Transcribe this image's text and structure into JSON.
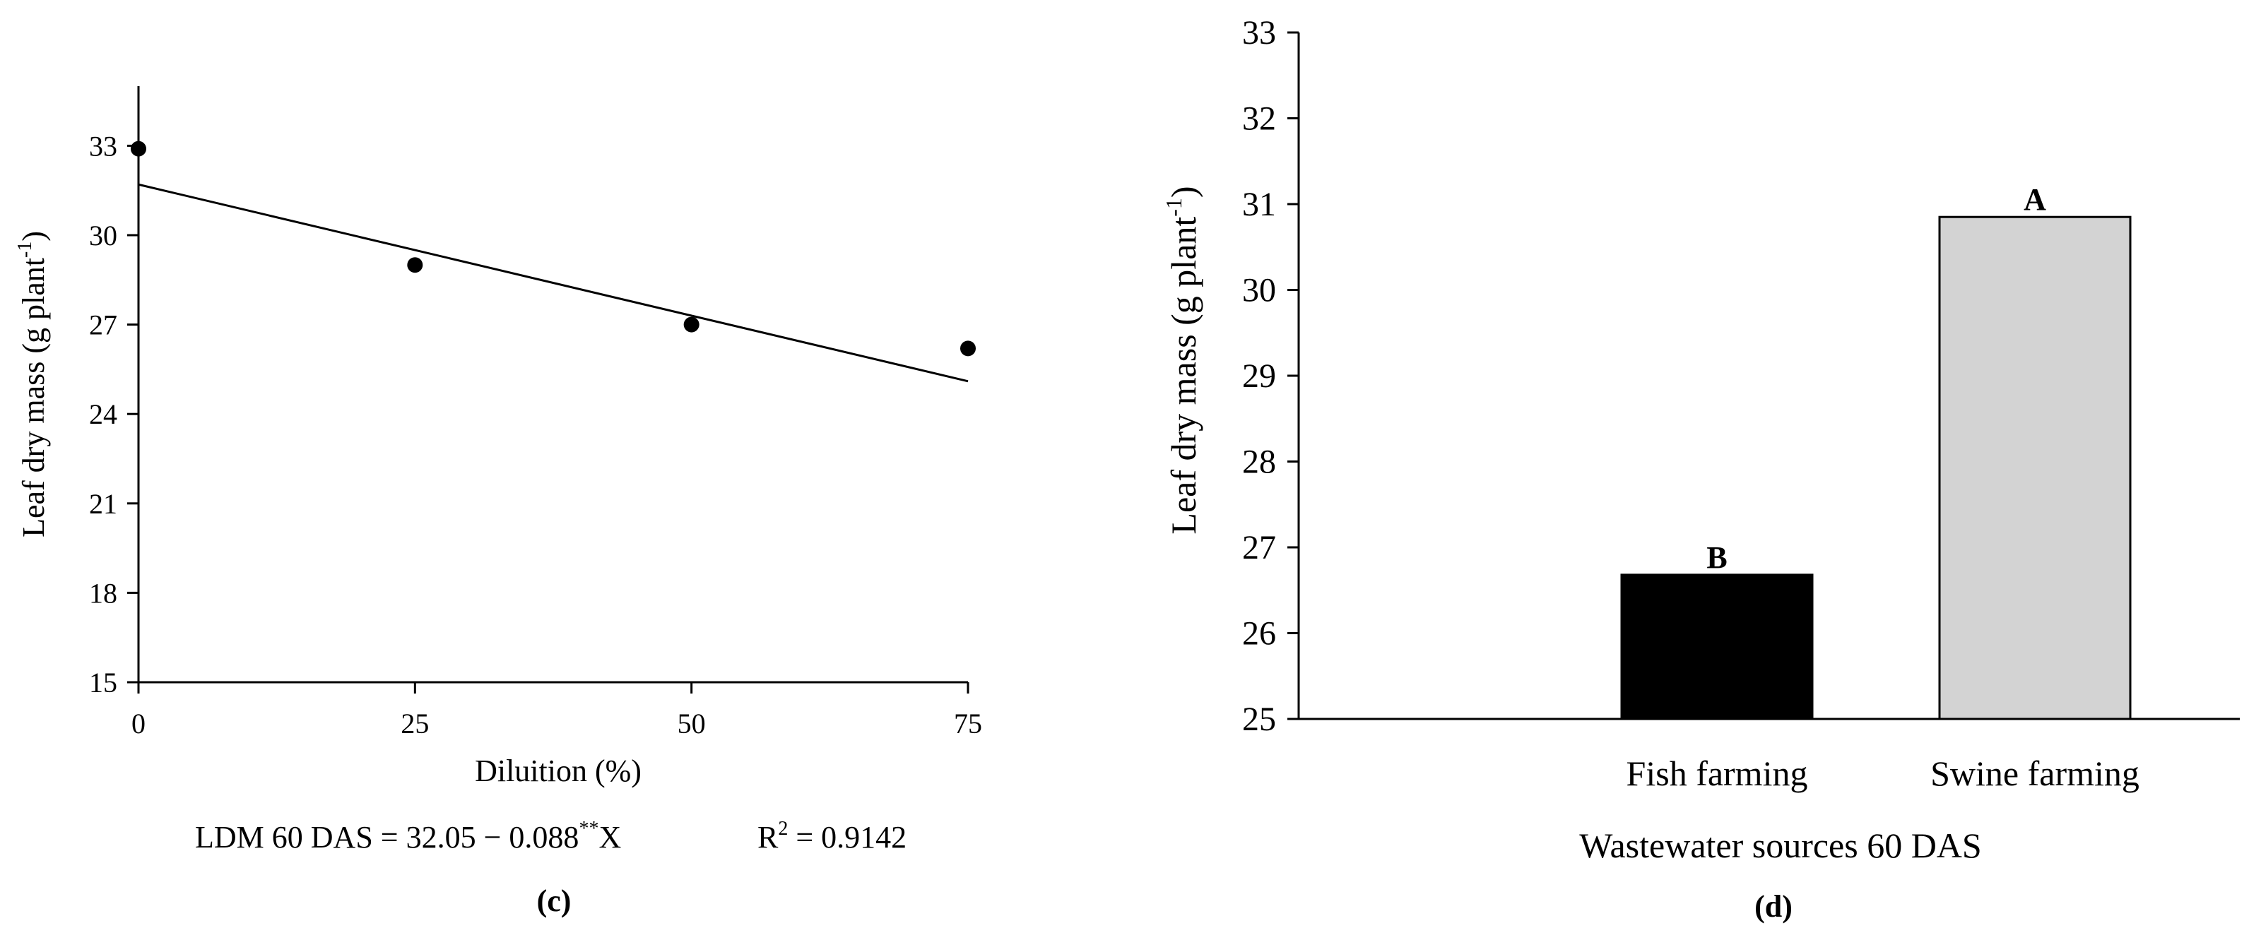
{
  "chart_data": [
    {
      "panel": "(c)",
      "type": "scatter",
      "ylabel": "Leaf dry mass (g plant",
      "ylabel_sup": "-1",
      "ylabel_end": ")",
      "xlabel": "Diluition (%)",
      "xticks": [
        "0",
        "25",
        "50",
        "75"
      ],
      "yticks": [
        "15",
        "18",
        "21",
        "24",
        "27",
        "30",
        "33"
      ],
      "xlim": [
        0,
        75
      ],
      "ylim": [
        15,
        35
      ],
      "points": [
        {
          "x": 0,
          "y": 32.9
        },
        {
          "x": 25,
          "y": 29.0
        },
        {
          "x": 50,
          "y": 27.0
        },
        {
          "x": 75,
          "y": 26.2
        }
      ],
      "trendline": {
        "x": [
          0,
          75
        ],
        "y": [
          31.7,
          25.1
        ]
      },
      "equation": {
        "lhs": "LDM 60 DAS = 32.05 − 0.088",
        "sup": "**",
        "tail": "X",
        "r2_label": "R",
        "r2_sup": "2",
        "r2_value": " = 0.9142"
      }
    },
    {
      "panel": "(d)",
      "type": "bar",
      "ylabel": "Leaf dry mass (g plant",
      "ylabel_sup": "-1",
      "ylabel_end": ")",
      "xlabel": "Wastewater sources 60 DAS",
      "categories": [
        "Fish farming",
        "Swine farming"
      ],
      "values": [
        26.68,
        30.85
      ],
      "bar_colors": [
        "#000000",
        "#d3d3d3"
      ],
      "letters": [
        "B",
        "A"
      ],
      "yticks": [
        "25",
        "26",
        "27",
        "28",
        "29",
        "30",
        "31",
        "32",
        "33"
      ],
      "ylim": [
        25,
        33
      ]
    }
  ]
}
